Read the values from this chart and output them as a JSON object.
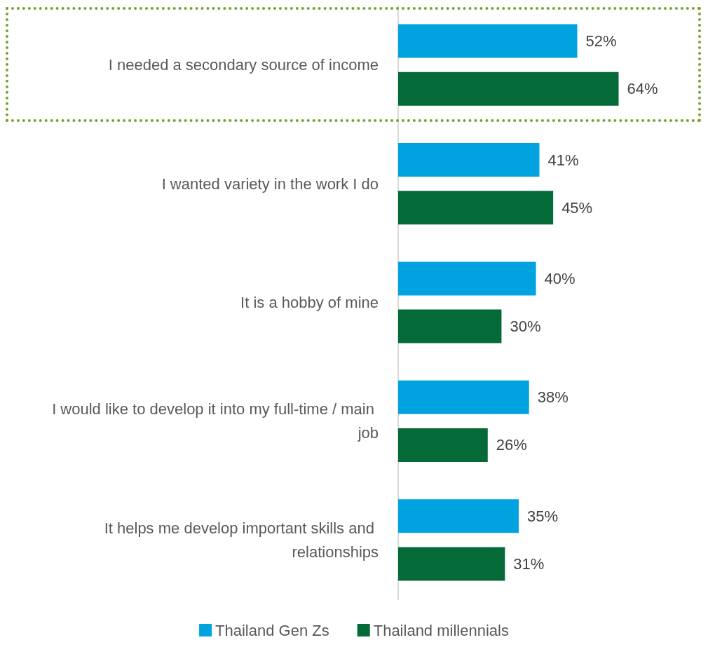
{
  "chart_data": {
    "type": "bar",
    "orientation": "horizontal",
    "categories": [
      "I needed a secondary source of income",
      "I wanted variety in the work I do",
      "It is a hobby of mine",
      "I would like to develop it into my full-time / main job",
      "It helps me develop important skills and relationships"
    ],
    "series": [
      {
        "name": "Thailand Gen Zs",
        "color": "#00a3e0",
        "values": [
          52,
          41,
          40,
          38,
          35
        ],
        "value_labels": [
          "52%",
          "41%",
          "40%",
          "38%",
          "35%"
        ]
      },
      {
        "name": "Thailand millennials",
        "color": "#046a38",
        "values": [
          64,
          45,
          30,
          26,
          31
        ],
        "value_labels": [
          "64%",
          "45%",
          "30%",
          "26%",
          "31%"
        ]
      }
    ],
    "legend": "bottom",
    "grid": false,
    "tick_labels": "y"
  }
}
